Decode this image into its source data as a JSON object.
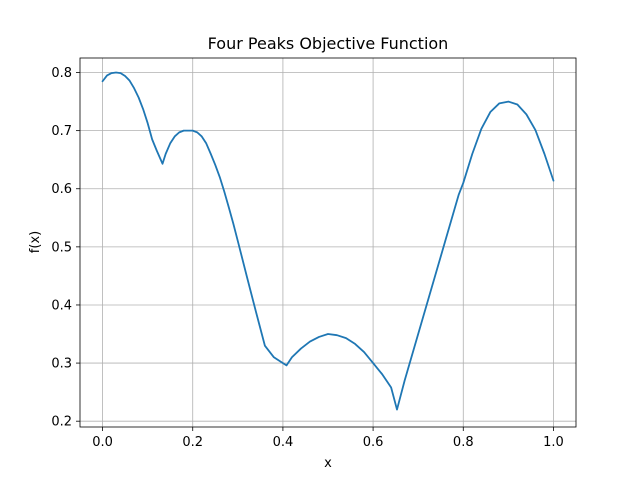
{
  "chart_data": {
    "type": "line",
    "title": "Four Peaks Objective Function",
    "xlabel": "x",
    "ylabel": "f(x)",
    "xlim": [
      -0.05,
      1.05
    ],
    "ylim": [
      0.19,
      0.825
    ],
    "xticks": [
      0.0,
      0.2,
      0.4,
      0.6,
      0.8,
      1.0
    ],
    "xtick_labels": [
      "0.0",
      "0.2",
      "0.4",
      "0.6",
      "0.8",
      "1.0"
    ],
    "yticks": [
      0.2,
      0.3,
      0.4,
      0.5,
      0.6,
      0.7,
      0.8
    ],
    "ytick_labels": [
      "0.2",
      "0.3",
      "0.4",
      "0.5",
      "0.6",
      "0.7",
      "0.8"
    ],
    "grid": true,
    "series": [
      {
        "color": "#1f77b4",
        "x": [
          0.0,
          0.01,
          0.02,
          0.03,
          0.04,
          0.05,
          0.06,
          0.07,
          0.08,
          0.09,
          0.1,
          0.11,
          0.12,
          0.133,
          0.14,
          0.15,
          0.16,
          0.17,
          0.18,
          0.19,
          0.2,
          0.21,
          0.22,
          0.23,
          0.24,
          0.25,
          0.26,
          0.27,
          0.28,
          0.29,
          0.3,
          0.32,
          0.34,
          0.36,
          0.38,
          0.4,
          0.408,
          0.42,
          0.44,
          0.46,
          0.48,
          0.5,
          0.52,
          0.54,
          0.56,
          0.58,
          0.6,
          0.62,
          0.64,
          0.653,
          0.67,
          0.7,
          0.73,
          0.76,
          0.79,
          0.8,
          0.82,
          0.84,
          0.86,
          0.88,
          0.9,
          0.92,
          0.94,
          0.96,
          0.98,
          1.0
        ],
        "y": [
          0.785,
          0.795,
          0.799,
          0.8,
          0.799,
          0.794,
          0.786,
          0.773,
          0.757,
          0.737,
          0.713,
          0.685,
          0.666,
          0.643,
          0.66,
          0.678,
          0.69,
          0.697,
          0.7,
          0.7,
          0.7,
          0.697,
          0.69,
          0.678,
          0.66,
          0.641,
          0.62,
          0.595,
          0.568,
          0.54,
          0.51,
          0.449,
          0.389,
          0.33,
          0.31,
          0.3,
          0.296,
          0.31,
          0.325,
          0.337,
          0.345,
          0.35,
          0.348,
          0.343,
          0.333,
          0.319,
          0.3,
          0.281,
          0.258,
          0.22,
          0.27,
          0.35,
          0.43,
          0.51,
          0.59,
          0.61,
          0.66,
          0.703,
          0.732,
          0.747,
          0.75,
          0.745,
          0.728,
          0.701,
          0.66,
          0.614
        ]
      }
    ]
  }
}
